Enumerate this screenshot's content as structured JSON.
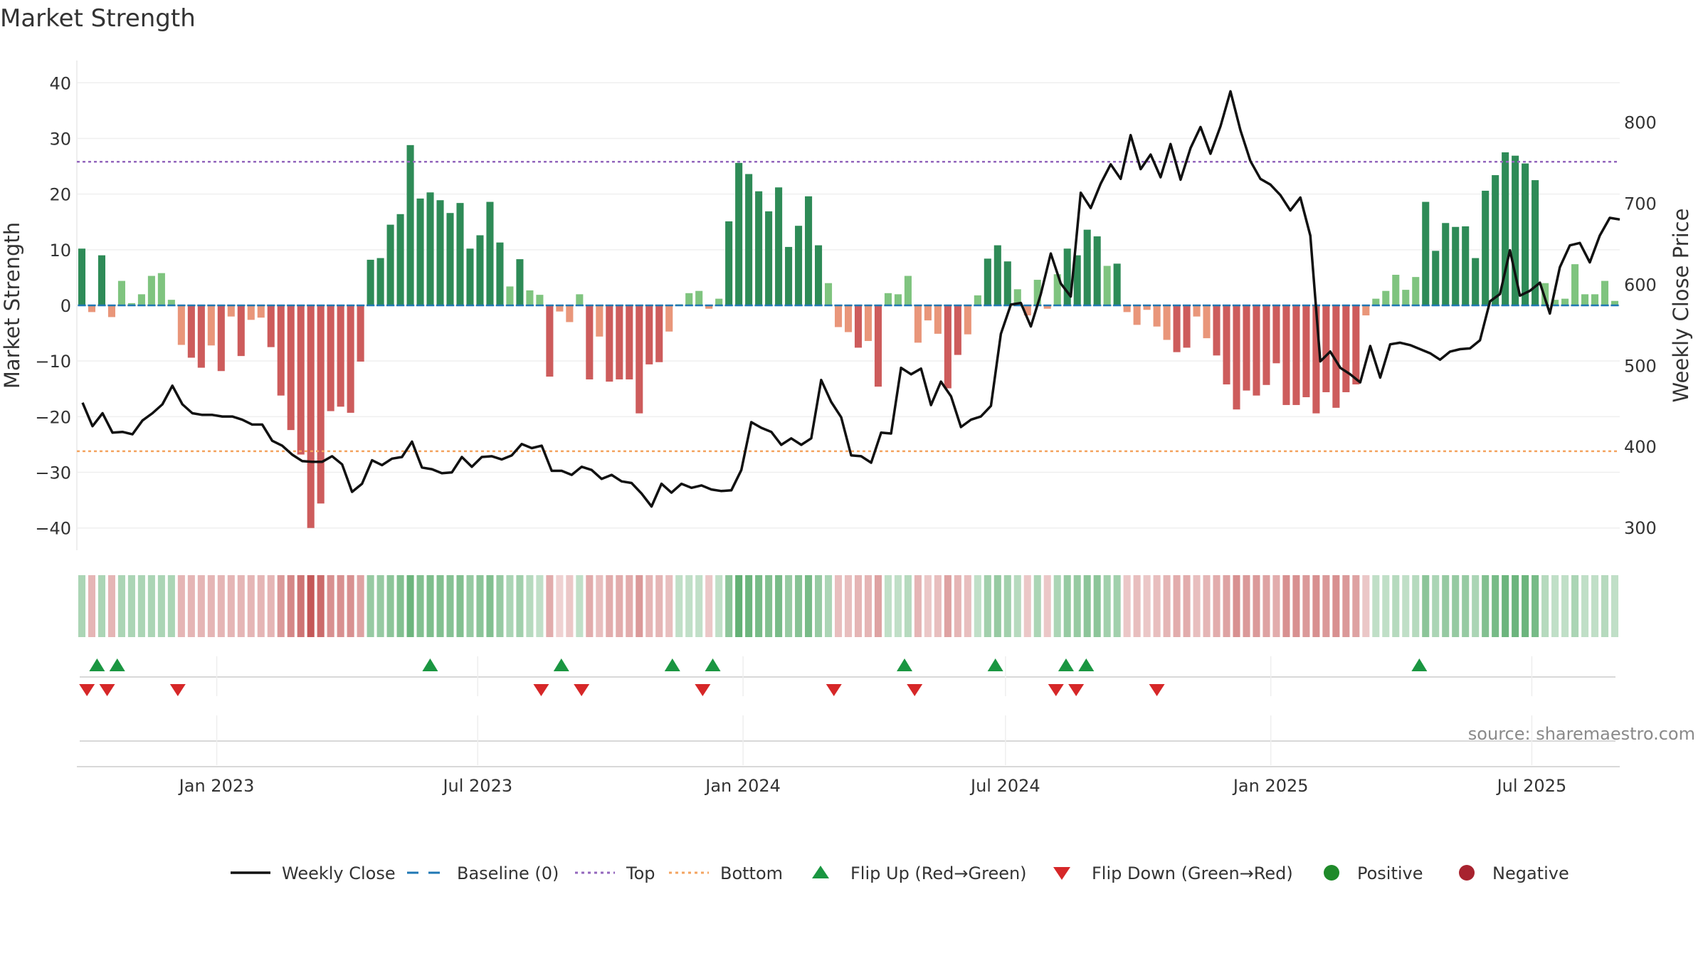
{
  "title": "Market Strength",
  "colors": {
    "dark_green": "#2e8b57",
    "light_green": "#7fc47f",
    "dark_red": "#cd5c5c",
    "light_red": "#e9967a",
    "price_line": "#111111",
    "baseline": "#1f77b4",
    "top_line": "#9467bd",
    "bottom_line": "#f4a460",
    "flip_up": "#1a9641",
    "flip_down": "#d62728",
    "positive": "#1f8a2a",
    "negative": "#a8232f"
  },
  "chart_data": {
    "type": "bar",
    "title": "Market Strength",
    "ylabel_left": "Market Strength",
    "ylabel_right": "Weekly Close Price",
    "ylim_left": [
      -44,
      44
    ],
    "ylim_right": [
      272,
      876
    ],
    "yticks_left": [
      "40",
      "30",
      "20",
      "10",
      "0",
      "−10",
      "−20",
      "−30",
      "−40"
    ],
    "yticks_left_values": [
      40,
      30,
      20,
      10,
      0,
      -10,
      -20,
      -30,
      -40
    ],
    "yticks_right": [
      "800",
      "700",
      "600",
      "500",
      "400",
      "300"
    ],
    "yticks_right_values": [
      800,
      700,
      600,
      500,
      400,
      300
    ],
    "x_start": "2022-09-26",
    "x_end": "2025-08-31",
    "x_tick_labels": [
      "Jan 2023",
      "Jul 2023",
      "Jan 2024",
      "Jul 2024",
      "Jan 2025",
      "Jul 2025"
    ],
    "x_tick_dates": [
      "2023-01-01",
      "2023-07-01",
      "2024-01-01",
      "2024-07-01",
      "2025-01-01",
      "2025-07-01"
    ],
    "top_level": 25.8,
    "bottom_level": -26.2,
    "baseline": 0,
    "strength": [
      10.2,
      -1.2,
      9.0,
      -2.1,
      4.4,
      0.4,
      2.0,
      5.3,
      5.8,
      1.0,
      -7.1,
      -9.4,
      -11.2,
      -7.2,
      -11.8,
      -2.0,
      -9.1,
      -2.6,
      -2.2,
      -7.5,
      -16.2,
      -22.4,
      -26.8,
      -40.0,
      -35.6,
      -19.0,
      -18.2,
      -19.3,
      -10.1,
      8.2,
      8.5,
      14.5,
      16.4,
      28.8,
      19.2,
      20.3,
      18.9,
      16.6,
      18.4,
      10.2,
      12.6,
      18.6,
      11.3,
      3.4,
      8.3,
      2.7,
      1.9,
      -12.8,
      -1.1,
      -3.0,
      2.0,
      -13.3,
      -5.6,
      -13.7,
      -13.3,
      -13.3,
      -19.4,
      -10.6,
      -10.2,
      -4.7,
      0.2,
      2.2,
      2.6,
      -0.6,
      1.2,
      15.1,
      25.6,
      23.6,
      20.5,
      16.9,
      21.2,
      10.5,
      14.3,
      19.6,
      10.8,
      4.0,
      -3.9,
      -4.8,
      -7.6,
      -6.4,
      -14.6,
      2.2,
      2.0,
      5.3,
      -6.7,
      -2.7,
      -5.1,
      -14.9,
      -8.9,
      -5.2,
      1.8,
      8.4,
      10.8,
      7.9,
      2.9,
      -1.8,
      4.6,
      -0.6,
      5.6,
      10.2,
      9.0,
      13.6,
      12.4,
      7.1,
      7.5,
      -1.2,
      -3.5,
      -0.8,
      -3.8,
      -6.2,
      -8.4,
      -7.6,
      -2.0,
      -5.9,
      -9.0,
      -14.2,
      -18.7,
      -15.3,
      -16.2,
      -14.3,
      -10.4,
      -17.9,
      -17.9,
      -16.5,
      -19.4,
      -15.6,
      -18.4,
      -15.6,
      -14.2,
      -1.8,
      1.2,
      2.6,
      5.5,
      2.8,
      5.1,
      18.6,
      9.8,
      14.8,
      14.1,
      14.2,
      8.5,
      20.6,
      23.4,
      27.5,
      26.9,
      25.5,
      22.5,
      4.0,
      1.0,
      1.2,
      7.4,
      2.0,
      2.0,
      4.4,
      0.8
    ],
    "weekly_close": [
      454,
      425,
      441,
      417,
      418,
      415,
      432,
      441,
      452,
      475,
      452,
      441,
      439,
      439,
      437,
      437,
      433,
      427,
      427,
      407,
      401,
      390,
      382,
      381,
      381,
      388,
      378,
      344,
      354,
      383,
      377,
      385,
      387,
      406,
      374,
      372,
      367,
      368,
      387,
      375,
      387,
      388,
      384,
      389,
      403,
      398,
      401,
      370,
      370,
      365,
      375,
      371,
      360,
      365,
      357,
      355,
      342,
      326,
      354,
      343,
      354,
      349,
      352,
      347,
      345,
      346,
      371,
      430,
      423,
      418,
      402,
      410,
      402,
      410,
      482,
      455,
      436,
      389,
      388,
      380,
      417,
      416,
      497,
      489,
      496,
      451,
      480,
      462,
      424,
      433,
      437,
      450,
      539,
      575,
      577,
      548,
      588,
      638,
      601,
      585,
      713,
      694,
      724,
      748,
      730,
      784,
      742,
      760,
      732,
      773,
      729,
      768,
      794,
      761,
      795,
      838,
      790,
      752,
      730,
      723,
      710,
      691,
      707,
      660,
      505,
      517,
      497,
      489,
      479,
      524,
      485,
      526,
      528,
      525,
      520,
      515,
      507,
      517,
      520,
      521,
      531,
      579,
      588,
      642,
      586,
      592,
      602,
      564,
      621,
      648,
      651,
      627,
      660,
      682,
      680
    ],
    "tile_intensity": [
      0.4,
      0.4,
      0.4,
      0.4,
      0.4,
      0.4,
      0.4,
      0.4,
      0.4,
      0.4,
      0.4,
      0.4,
      0.4,
      0.4,
      0.4,
      0.4,
      0.4,
      0.4,
      0.4,
      0.4,
      0.55,
      0.65,
      0.75,
      0.9,
      0.8,
      0.6,
      0.6,
      0.6,
      0.5,
      0.5,
      0.5,
      0.55,
      0.6,
      0.7,
      0.6,
      0.62,
      0.6,
      0.58,
      0.6,
      0.5,
      0.55,
      0.6,
      0.5,
      0.4,
      0.45,
      0.35,
      0.3,
      0.45,
      0.25,
      0.3,
      0.3,
      0.45,
      0.35,
      0.45,
      0.45,
      0.45,
      0.55,
      0.4,
      0.4,
      0.35,
      0.3,
      0.3,
      0.3,
      0.3,
      0.3,
      0.55,
      0.75,
      0.7,
      0.65,
      0.6,
      0.65,
      0.5,
      0.58,
      0.65,
      0.5,
      0.4,
      0.35,
      0.35,
      0.4,
      0.4,
      0.5,
      0.3,
      0.3,
      0.35,
      0.4,
      0.3,
      0.35,
      0.5,
      0.4,
      0.35,
      0.3,
      0.45,
      0.5,
      0.45,
      0.35,
      0.3,
      0.4,
      0.3,
      0.4,
      0.5,
      0.5,
      0.55,
      0.55,
      0.45,
      0.45,
      0.3,
      0.35,
      0.3,
      0.35,
      0.4,
      0.45,
      0.45,
      0.35,
      0.4,
      0.45,
      0.5,
      0.6,
      0.55,
      0.55,
      0.5,
      0.45,
      0.6,
      0.6,
      0.55,
      0.6,
      0.55,
      0.6,
      0.55,
      0.5,
      0.3,
      0.3,
      0.3,
      0.35,
      0.3,
      0.35,
      0.55,
      0.4,
      0.5,
      0.5,
      0.5,
      0.4,
      0.6,
      0.65,
      0.7,
      0.7,
      0.7,
      0.65,
      0.35,
      0.3,
      0.3,
      0.4,
      0.3,
      0.3,
      0.35,
      0.3
    ],
    "flip_up_dates": [
      "2022-10-10",
      "2022-10-24",
      "2023-05-29",
      "2023-08-28",
      "2023-11-13",
      "2023-12-11",
      "2024-04-22",
      "2024-06-24",
      "2024-08-12",
      "2024-08-26",
      "2025-04-14"
    ],
    "flip_down_dates": [
      "2022-10-03",
      "2022-10-17",
      "2022-12-05",
      "2023-08-14",
      "2023-09-11",
      "2023-12-04",
      "2024-03-04",
      "2024-04-29",
      "2024-08-05",
      "2024-08-19",
      "2024-10-14"
    ],
    "source": "source: sharemaestro.com",
    "legend": [
      {
        "type": "line",
        "label": "Weekly Close"
      },
      {
        "type": "dash",
        "label": "Baseline (0)"
      },
      {
        "type": "dot",
        "label": "Top"
      },
      {
        "type": "dot",
        "label": "Bottom"
      },
      {
        "type": "up",
        "label": "Flip Up (Red→Green)"
      },
      {
        "type": "down",
        "label": "Flip Down (Green→Red)"
      },
      {
        "type": "circle",
        "label": "Positive"
      },
      {
        "type": "circle",
        "label": "Negative"
      }
    ]
  }
}
